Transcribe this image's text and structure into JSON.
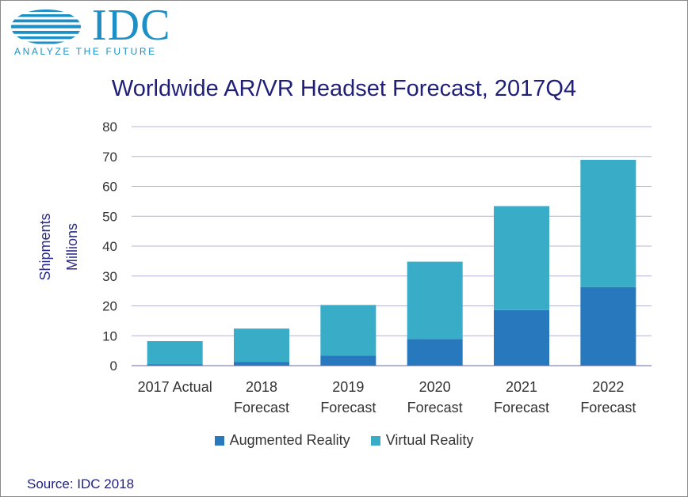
{
  "logo": {
    "wordmark": "IDC",
    "tagline": "ANALYZE THE FUTURE",
    "color": "#1e8fc4",
    "icon": "globe-stripes-icon"
  },
  "chart_data": {
    "type": "bar",
    "stacked": true,
    "title": "Worldwide AR/VR Headset Forecast, 2017Q4",
    "ylabel": [
      "Shipments",
      "Millions"
    ],
    "xlabel": "",
    "categories": [
      [
        "2017 Actual"
      ],
      [
        "2018",
        "Forecast"
      ],
      [
        "2019",
        "Forecast"
      ],
      [
        "2020",
        "Forecast"
      ],
      [
        "2021",
        "Forecast"
      ],
      [
        "2022",
        "Forecast"
      ]
    ],
    "series": [
      {
        "name": "Augmented Reality",
        "color": "#2878be",
        "values": [
          0.4,
          1.2,
          3.3,
          8.9,
          18.6,
          26.3
        ]
      },
      {
        "name": "Virtual Reality",
        "color": "#39adc8",
        "values": [
          7.8,
          11.2,
          17.0,
          25.9,
          34.8,
          42.6
        ]
      }
    ],
    "ylim": [
      0,
      80
    ],
    "yticks": [
      0,
      10,
      20,
      30,
      40,
      50,
      60,
      70,
      80
    ],
    "grid": true,
    "legend_position": "bottom"
  },
  "source": "Source: IDC 2018"
}
